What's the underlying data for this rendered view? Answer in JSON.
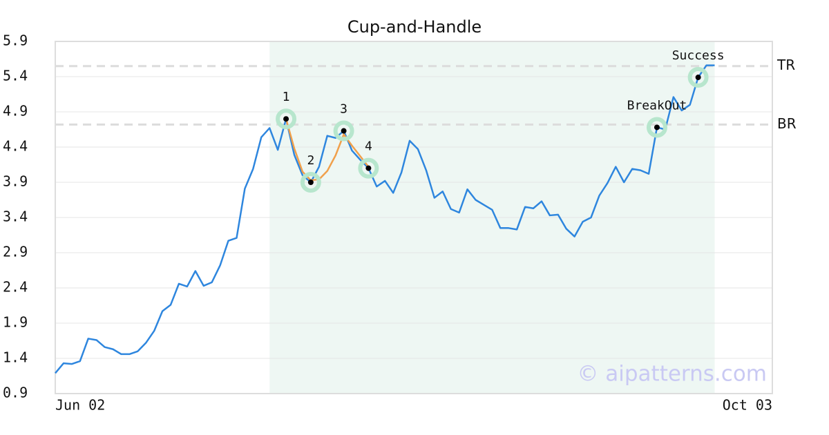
{
  "chart_data": {
    "type": "line",
    "title": "Cup-and-Handle",
    "categories": [
      "Jun 02",
      null,
      null,
      null,
      null,
      null,
      null,
      null,
      null,
      null,
      null,
      null,
      null,
      null,
      null,
      null,
      null,
      null,
      null,
      null,
      null,
      null,
      null,
      null,
      null,
      null,
      null,
      null,
      null,
      null,
      null,
      null,
      null,
      null,
      null,
      null,
      null,
      null,
      null,
      null,
      null,
      null,
      null,
      null,
      null,
      null,
      null,
      null,
      null,
      null,
      null,
      null,
      null,
      null,
      null,
      null,
      null,
      null,
      null,
      null,
      null,
      null,
      null,
      null,
      null,
      null,
      null,
      null,
      null,
      null,
      null,
      null,
      null,
      null,
      null,
      null,
      null,
      null,
      null,
      null,
      null,
      null,
      null,
      null,
      null,
      null,
      null,
      "Oct 03"
    ],
    "series": [
      {
        "color": "#2e86de",
        "values": [
          1.19,
          1.33,
          1.32,
          1.36,
          1.68,
          1.66,
          1.56,
          1.53,
          1.46,
          1.46,
          1.5,
          1.62,
          1.79,
          2.07,
          2.16,
          2.46,
          2.42,
          2.64,
          2.43,
          2.48,
          2.72,
          3.07,
          3.11,
          3.81,
          4.09,
          4.54,
          4.67,
          4.36,
          4.8,
          4.29,
          4.0,
          3.9,
          4.12,
          4.56,
          4.53,
          4.63,
          4.35,
          4.22,
          4.1,
          3.84,
          3.92,
          3.75,
          4.04,
          4.49,
          4.37,
          4.07,
          3.68,
          3.77,
          3.52,
          3.47,
          3.8,
          3.65,
          3.58,
          3.51,
          3.25,
          3.25,
          3.23,
          3.55,
          3.53,
          3.63,
          3.43,
          3.44,
          3.24,
          3.13,
          3.34,
          3.4,
          3.71,
          3.89,
          4.12,
          3.9,
          4.09,
          4.07,
          4.02,
          4.68,
          4.65,
          5.11,
          4.92,
          5.0,
          5.39,
          5.56,
          5.56,
          null,
          null,
          null,
          null,
          null,
          null,
          null
        ]
      },
      {
        "color": "#f0a04b",
        "values": [
          null,
          null,
          null,
          null,
          null,
          null,
          null,
          null,
          null,
          null,
          null,
          null,
          null,
          null,
          null,
          null,
          null,
          null,
          null,
          null,
          null,
          null,
          null,
          null,
          null,
          null,
          null,
          null,
          4.8,
          4.38,
          4.05,
          3.93,
          3.94,
          4.06,
          4.28,
          4.58,
          4.42,
          4.27,
          4.12,
          null,
          null,
          null,
          null,
          null,
          null,
          null,
          null,
          null,
          null,
          null,
          null,
          null,
          null,
          null,
          null,
          null,
          null,
          null,
          null,
          null,
          null,
          null,
          null,
          null,
          null,
          null,
          null,
          null,
          null,
          null,
          null,
          null,
          null,
          null,
          null,
          null,
          null,
          null,
          null,
          null,
          null,
          null,
          null,
          null,
          null,
          null,
          null,
          null
        ]
      }
    ],
    "pattern_points": [
      {
        "index": 28,
        "value": 4.8,
        "label": "1"
      },
      {
        "index": 31,
        "value": 3.9,
        "label": "2"
      },
      {
        "index": 35,
        "value": 4.63,
        "label": "3"
      },
      {
        "index": 38,
        "value": 4.1,
        "label": "4"
      },
      {
        "index": 73,
        "value": 4.68,
        "label": "BreakOut"
      },
      {
        "index": 78,
        "value": 5.39,
        "label": "Success"
      }
    ],
    "levels": [
      {
        "value": 5.55,
        "label": "TR"
      },
      {
        "value": 4.72,
        "label": "BR"
      }
    ],
    "shaded_range": [
      26,
      80
    ],
    "ylim": [
      0.9,
      5.9
    ],
    "yticks": [
      0.9,
      1.4,
      1.9,
      2.4,
      2.9,
      3.4,
      3.9,
      4.4,
      4.9,
      5.4,
      5.9
    ],
    "grid": true,
    "watermark": "© aipatterns.com"
  }
}
